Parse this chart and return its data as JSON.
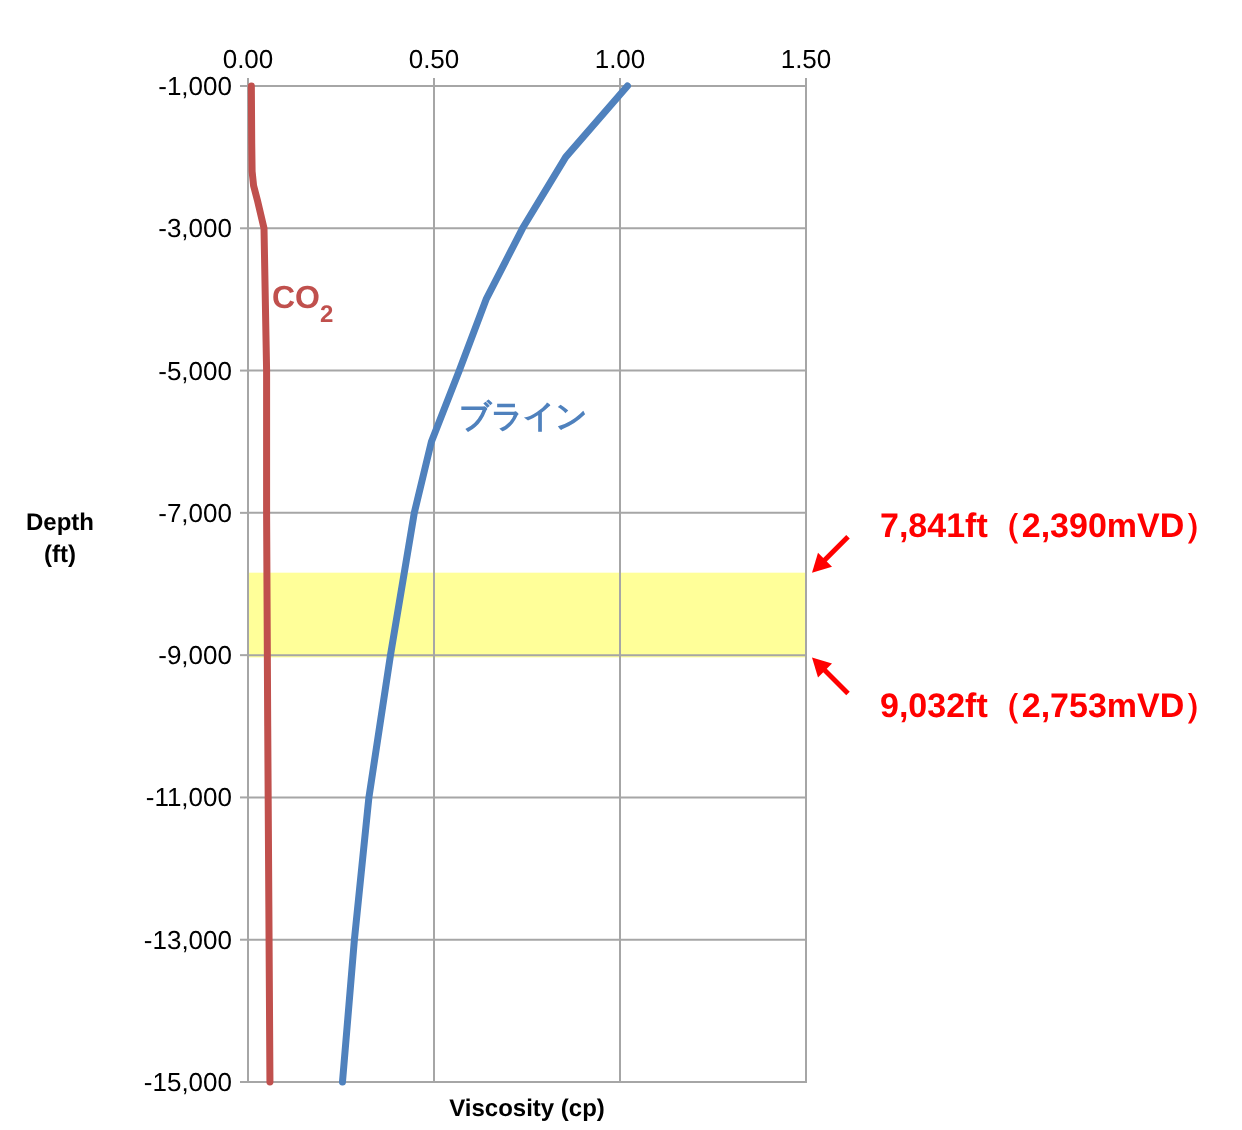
{
  "chart_data": {
    "type": "line",
    "xlabel": "Viscosity (cp)",
    "ylabel": "Depth (ft)",
    "xlim": [
      0,
      1.5
    ],
    "ylim": [
      -15000,
      -1000
    ],
    "xticks": [
      {
        "value": 0,
        "label": "0.00"
      },
      {
        "value": 0.5,
        "label": "0.50"
      },
      {
        "value": 1,
        "label": "1.00"
      },
      {
        "value": 1.5,
        "label": "1.50"
      }
    ],
    "yticks": [
      {
        "value": -1000,
        "label": "-1,000"
      },
      {
        "value": -3000,
        "label": "-3,000"
      },
      {
        "value": -5000,
        "label": "-5,000"
      },
      {
        "value": -7000,
        "label": "-7,000"
      },
      {
        "value": -9000,
        "label": "-9,000"
      },
      {
        "value": -11000,
        "label": "-11,000"
      },
      {
        "value": -13000,
        "label": "-13,000"
      },
      {
        "value": -15000,
        "label": "-15,000"
      }
    ],
    "grid": true,
    "orientation": "horizontal",
    "series": [
      {
        "name": "CO$_{2}$",
        "color": "#c0504d",
        "values": [
          0.009,
          0.01,
          0.011,
          0.015,
          0.025,
          0.043,
          0.05,
          0.05,
          0.053,
          0.056,
          0.059
        ],
        "x": [
          -1000,
          -1800,
          -2200,
          -2400,
          -2600,
          -3000,
          -5000,
          -7000,
          -10000,
          -12500,
          -15000
        ]
      },
      {
        "name": "ブライン",
        "color": "#4f81bd",
        "values": [
          1.02,
          0.854,
          0.738,
          0.64,
          0.568,
          0.493,
          0.447,
          0.383,
          0.325,
          0.286,
          0.254
        ],
        "x": [
          -1000,
          -2000,
          -3000,
          -4000,
          -5000,
          -6000,
          -7000,
          -9000,
          -11000,
          -13000,
          -15000
        ]
      }
    ],
    "bands": [
      {
        "axis": "y",
        "from": -9032,
        "to": -7841,
        "color": "#ffff99"
      }
    ],
    "annotations": [
      {
        "text": "7,841ft（2,390mVD）",
        "x": 1.5,
        "y": -7841
      },
      {
        "text": "9,032ft（2,753mVD）",
        "x": 1.5,
        "y": -9032
      }
    ]
  }
}
